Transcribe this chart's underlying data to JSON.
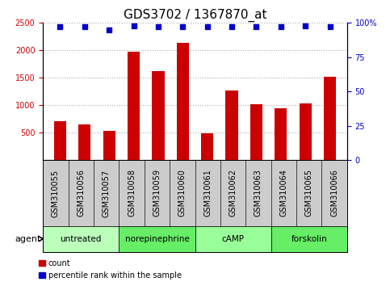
{
  "title": "GDS3702 / 1367870_at",
  "samples": [
    "GSM310055",
    "GSM310056",
    "GSM310057",
    "GSM310058",
    "GSM310059",
    "GSM310060",
    "GSM310061",
    "GSM310062",
    "GSM310063",
    "GSM310064",
    "GSM310065",
    "GSM310066"
  ],
  "count_values": [
    710,
    650,
    540,
    1980,
    1620,
    2130,
    490,
    1270,
    1020,
    950,
    1030,
    1520
  ],
  "percentile_values": [
    97,
    97,
    95,
    98,
    97,
    97,
    97,
    97,
    97,
    97,
    98,
    97
  ],
  "ylim_left": [
    0,
    2500
  ],
  "ylim_right": [
    0,
    100
  ],
  "yticks_left": [
    500,
    1000,
    1500,
    2000,
    2500
  ],
  "yticks_right": [
    0,
    25,
    50,
    75,
    100
  ],
  "bar_color": "#cc0000",
  "dot_color": "#0000cc",
  "agent_groups": [
    {
      "label": "untreated",
      "start": 0,
      "end": 3,
      "color": "#bbffbb"
    },
    {
      "label": "norepinephrine",
      "start": 3,
      "end": 6,
      "color": "#66ee66"
    },
    {
      "label": "cAMP",
      "start": 6,
      "end": 9,
      "color": "#99ff99"
    },
    {
      "label": "forskolin",
      "start": 9,
      "end": 12,
      "color": "#66ee66"
    }
  ],
  "agent_label": "agent",
  "legend_count_label": "count",
  "legend_pct_label": "percentile rank within the sample",
  "grid_color": "#aaaaaa",
  "axis_label_color_left": "#cc0000",
  "axis_label_color_right": "#0000cc",
  "sample_box_color": "#cccccc",
  "title_fontsize": 11,
  "tick_fontsize": 7,
  "bar_width": 0.5
}
